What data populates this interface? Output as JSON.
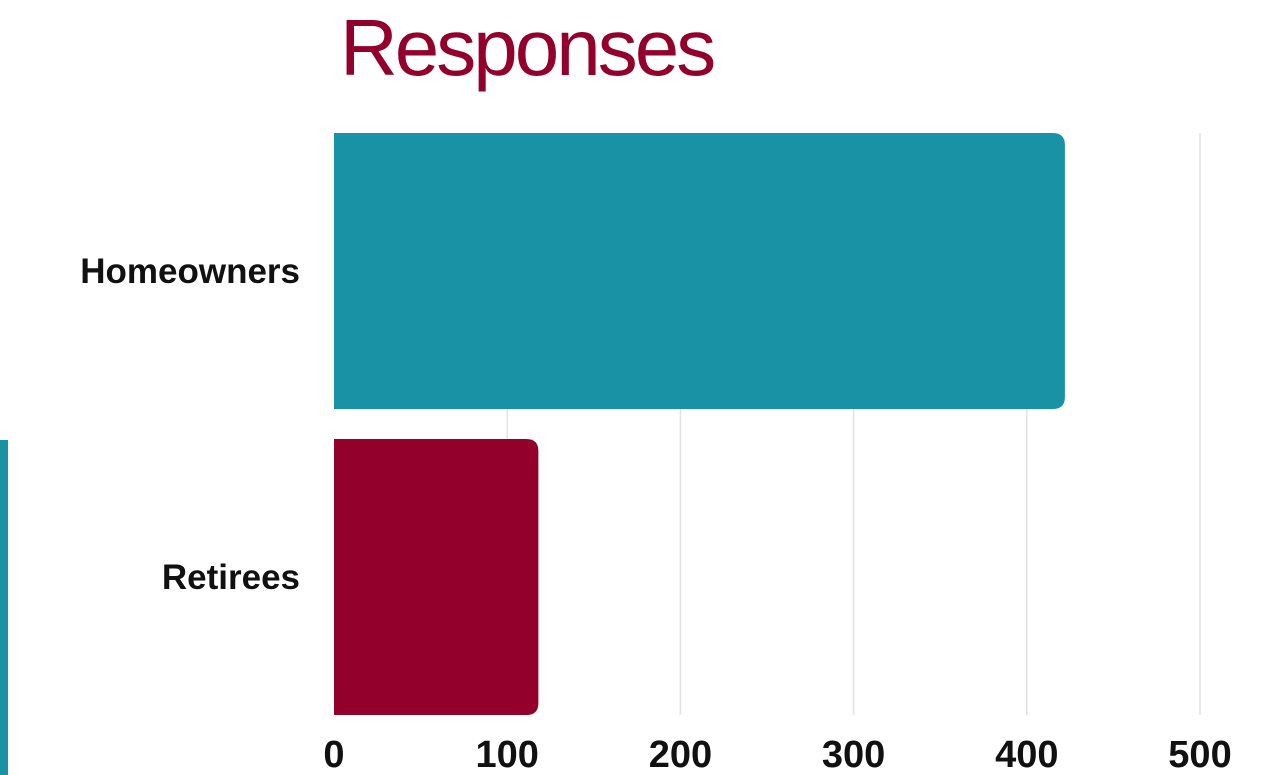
{
  "colors": {
    "title": "#93002B",
    "accent": "#1A92A5",
    "grid": "#E2E2E2"
  },
  "chart_data": {
    "type": "bar",
    "orientation": "horizontal",
    "title": "Responses",
    "xlabel": "",
    "ylabel": "",
    "categories": [
      "Homeowners",
      "Retirees"
    ],
    "values": [
      422,
      118
    ],
    "colors": [
      "#1A92A5",
      "#93002B"
    ],
    "xlim": [
      0,
      500
    ],
    "xticks": [
      0,
      100,
      200,
      300,
      400,
      500
    ],
    "grid": true,
    "legend": "none"
  }
}
